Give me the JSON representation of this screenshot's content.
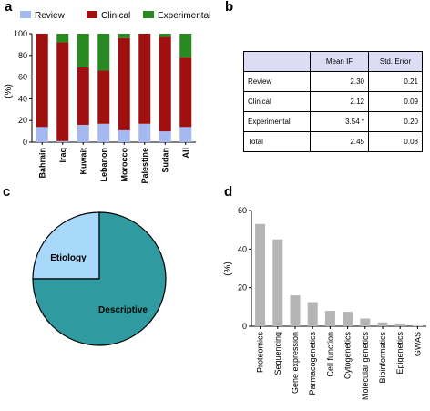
{
  "panels": {
    "a": "a",
    "b": "b",
    "c": "c",
    "d": "d"
  },
  "colors": {
    "review": "#a6b8f0",
    "clinical": "#a01010",
    "experimental": "#2a8a22",
    "etiology": "#a8d8fa",
    "descriptive": "#2f9aa0",
    "bar_d": "#b5b5b5"
  },
  "chart_data": [
    {
      "type": "bar",
      "stacked": true,
      "categories": [
        "Bahrain",
        "Iraq",
        "Kuwait",
        "Lebanon",
        "Morocco",
        "Palestine",
        "Sudan",
        "All"
      ],
      "series": [
        {
          "name": "Review",
          "values": [
            14,
            1,
            16,
            17,
            11,
            17,
            10,
            14
          ]
        },
        {
          "name": "Clinical",
          "values": [
            86,
            91,
            53,
            49,
            85,
            83,
            87,
            64
          ]
        },
        {
          "name": "Experimental",
          "values": [
            0,
            8,
            31,
            34,
            4,
            0,
            3,
            22
          ]
        }
      ],
      "ylabel": "(%)",
      "ylim": [
        0,
        100
      ],
      "yticks": [
        0,
        20,
        40,
        60,
        80,
        100
      ],
      "legend": "top"
    },
    {
      "type": "table",
      "columns": [
        "",
        "Mean IF",
        "Std. Error"
      ],
      "rows": [
        [
          "Review",
          "2.30",
          "0.21"
        ],
        [
          "Clinical",
          "2.12",
          "0.09"
        ],
        [
          "Experimental",
          "3.54 *",
          "0.20"
        ],
        [
          "Total",
          "2.45",
          "0.08"
        ]
      ]
    },
    {
      "type": "pie",
      "labels": [
        "Etiology",
        "Descriptive"
      ],
      "values": [
        25,
        75
      ]
    },
    {
      "type": "bar",
      "categories": [
        "Proteomics",
        "Sequencing",
        "Gene expression",
        "Parmacogenetics",
        "Cell function",
        "Cytogenetics",
        "Molecular genetics",
        "Bioinformatics",
        "Epigenetics",
        "GWAS"
      ],
      "values": [
        53,
        45,
        16,
        12.5,
        8,
        7.5,
        4,
        2,
        1.5,
        0.3
      ],
      "ylabel": "(%)",
      "ylim": [
        0,
        60
      ],
      "yticks": [
        0,
        20,
        40,
        60
      ]
    }
  ]
}
